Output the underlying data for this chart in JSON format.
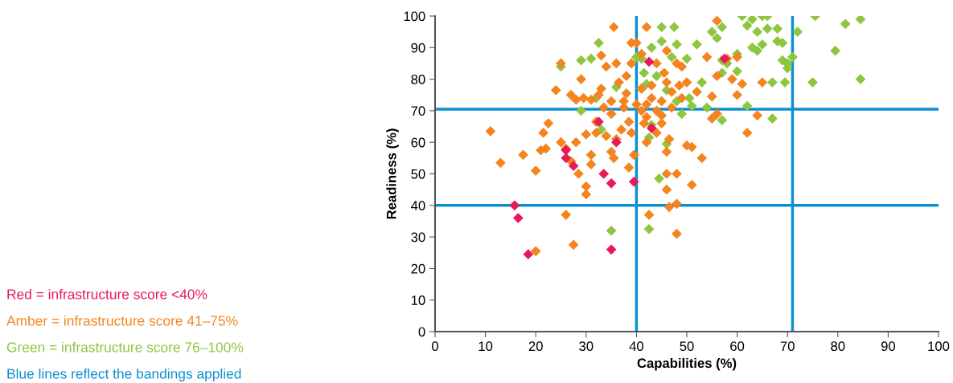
{
  "chart_data": {
    "type": "scatter",
    "xlabel": "Capabilities (%)",
    "ylabel": "Readiness (%)",
    "marker": "diamond",
    "xlim": [
      0,
      100
    ],
    "ylim": [
      0,
      100
    ],
    "xticks": [
      0,
      10,
      20,
      30,
      40,
      50,
      60,
      70,
      80,
      90,
      100
    ],
    "yticks": [
      0,
      10,
      20,
      30,
      40,
      50,
      60,
      70,
      80,
      90,
      100
    ],
    "series": [
      {
        "name": "Red = infrastructure score <40%",
        "color": "#e8185a",
        "x": [
          15.8,
          16.5,
          18.5,
          35,
          26,
          27.5,
          32.5,
          33.5,
          35,
          36,
          39.5,
          42.5,
          43,
          57.5,
          26
        ],
        "values": [
          40,
          36,
          24.5,
          26,
          55,
          52.5,
          66.5,
          50,
          47,
          60,
          47.5,
          85.5,
          64.5,
          86.5,
          57.5
        ]
      },
      {
        "name": "Amber = infrastructure score 41–75%",
        "color": "#f4841f",
        "x": [
          11,
          13,
          17.5,
          20,
          21,
          22,
          22.5,
          21.5,
          20,
          24,
          25,
          25,
          26,
          26,
          27,
          27.5,
          27,
          28,
          28,
          28.5,
          29,
          29.5,
          30,
          30,
          30,
          31,
          31,
          31,
          32,
          32,
          32.5,
          33,
          33,
          33.5,
          34,
          34,
          35,
          35,
          35,
          35.5,
          35.5,
          36,
          36,
          36.5,
          37,
          37.5,
          37.5,
          38,
          38,
          38.5,
          38.5,
          39,
          39,
          39,
          39.5,
          40,
          40,
          41,
          41,
          41,
          41.5,
          42,
          42,
          42,
          42,
          42.5,
          43,
          43,
          44,
          44,
          44,
          45,
          45,
          45,
          45.5,
          46,
          46,
          46,
          46,
          46,
          46.5,
          46.5,
          47,
          47,
          48,
          48,
          48,
          48,
          48.5,
          49,
          49,
          50,
          50,
          51,
          51,
          52,
          53,
          54,
          55,
          55,
          56,
          56,
          58,
          59,
          60,
          61,
          60,
          62,
          64,
          65,
          56
        ],
        "values": [
          63.5,
          53.5,
          56,
          51,
          57.5,
          58,
          66,
          63,
          25.5,
          76.5,
          85,
          60,
          37,
          58,
          54,
          27.5,
          75,
          73.5,
          60,
          50,
          80,
          74,
          43.5,
          46,
          62.5,
          53,
          56,
          73.5,
          63,
          66.5,
          75,
          77,
          87.5,
          71,
          84,
          62,
          57,
          73,
          69,
          96.5,
          55,
          85,
          61,
          79,
          64,
          73,
          71,
          81,
          75.5,
          52,
          66.5,
          85,
          91.5,
          63,
          56,
          91.5,
          72,
          88,
          77,
          70,
          66,
          72,
          96.5,
          60,
          68,
          37,
          78,
          74,
          70,
          63,
          85,
          73,
          66,
          68.5,
          82,
          89,
          79,
          50,
          45,
          57,
          61,
          39.5,
          76,
          71,
          40.5,
          31,
          50,
          85,
          78,
          74,
          84,
          79,
          59,
          58.5,
          46.5,
          76,
          55,
          87,
          67.5,
          74.5,
          69,
          98.5,
          86.5,
          80,
          87,
          78.5,
          75,
          63,
          68.5,
          79,
          81
        ]
      },
      {
        "name": "Green = infrastructure score 76–100%",
        "color": "#8dc63f",
        "x": [
          25,
          29,
          29,
          31,
          32.5,
          32,
          33,
          35,
          36,
          39,
          40,
          41,
          41,
          41.5,
          42,
          42.5,
          42.5,
          43,
          43,
          44,
          44.5,
          45,
          45,
          46,
          46,
          47,
          47.5,
          48,
          48,
          49,
          50,
          50.5,
          51,
          52,
          53,
          54,
          55,
          56,
          57,
          57,
          57,
          57,
          58,
          60,
          61,
          62,
          62,
          63,
          64,
          65,
          66,
          65,
          64,
          66,
          67,
          67,
          68,
          68,
          69,
          69,
          70,
          70,
          71,
          72,
          75,
          75.5,
          79.5,
          81.5,
          84.5,
          84.5,
          69.5,
          63,
          60
        ],
        "values": [
          84,
          70,
          86,
          86.5,
          91.5,
          74,
          64,
          32,
          77.5,
          85,
          87,
          86.5,
          77,
          82,
          78.5,
          61.5,
          32.5,
          65.5,
          90,
          81,
          48.5,
          96.5,
          92,
          76.5,
          59.5,
          87,
          96.5,
          91,
          73,
          69,
          86.5,
          74,
          71.5,
          91,
          79,
          71,
          95,
          93,
          86,
          82,
          67,
          96.5,
          85,
          88,
          100,
          97,
          71.5,
          99,
          95,
          100,
          100,
          91,
          89,
          96,
          79,
          67.5,
          92,
          96,
          91.5,
          86,
          85,
          83.5,
          87,
          95,
          79,
          100,
          89,
          97.5,
          99,
          80,
          79,
          90,
          82.5
        ]
      }
    ],
    "ref_lines": [
      {
        "axis": "x",
        "value": 40,
        "color": "#0b8fd2"
      },
      {
        "axis": "x",
        "value": 71,
        "color": "#0b8fd2"
      },
      {
        "axis": "y",
        "value": 40,
        "color": "#0b8fd2"
      },
      {
        "axis": "y",
        "value": 70.5,
        "color": "#0b8fd2"
      }
    ],
    "annotations": [
      "Blue lines reflect the bandings applied"
    ]
  }
}
